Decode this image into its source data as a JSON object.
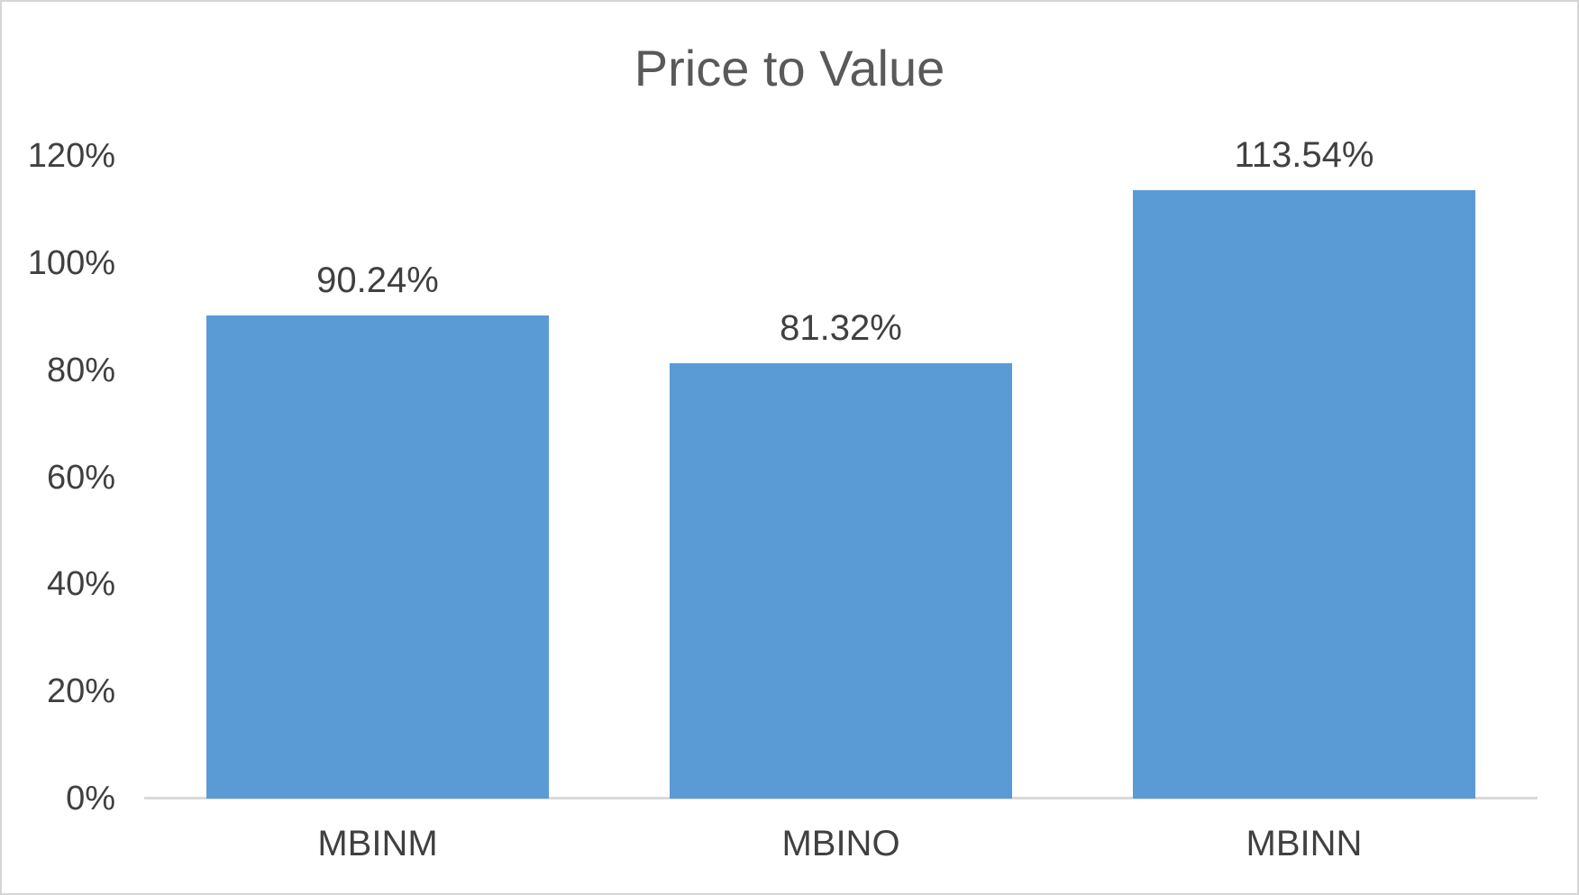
{
  "chart_data": {
    "type": "bar",
    "title": "Price to Value",
    "categories": [
      "MBINM",
      "MBINO",
      "MBINN"
    ],
    "values": [
      90.24,
      81.32,
      113.54
    ],
    "data_labels": [
      "90.24%",
      "81.32%",
      "113.54%"
    ],
    "xlabel": "",
    "ylabel": "",
    "ylim": [
      0,
      120
    ],
    "yticks": [
      0,
      20,
      40,
      60,
      80,
      100,
      120
    ],
    "ytick_labels": [
      "0%",
      "20%",
      "40%",
      "60%",
      "80%",
      "100%",
      "120%"
    ],
    "grid": false,
    "legend": false,
    "colors": {
      "bar_fill": "#5b9bd5",
      "axis_line": "#d9d9d9",
      "title_text": "#595959",
      "label_text": "#404040",
      "background": "#ffffff",
      "border": "#d6d6d6"
    }
  }
}
